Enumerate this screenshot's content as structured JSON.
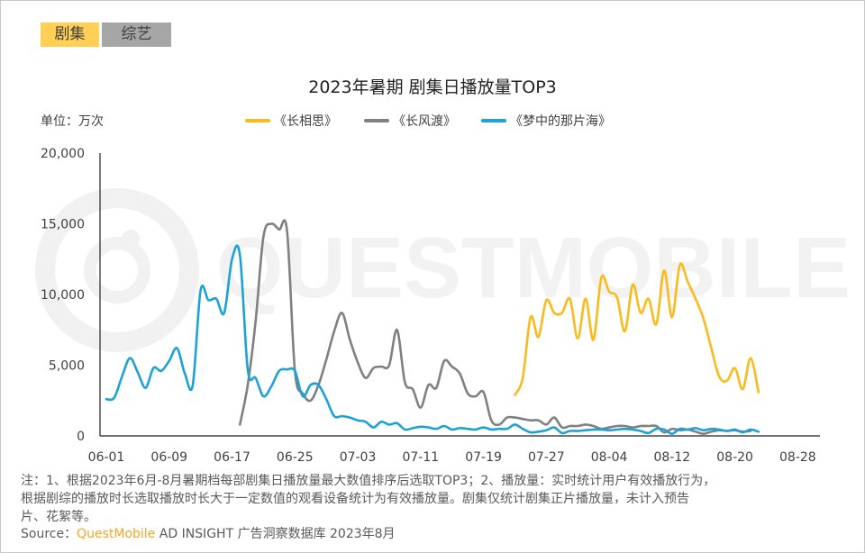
{
  "tabs": [
    {
      "label": "剧集",
      "active": true,
      "color": "#FFD055"
    },
    {
      "label": "综艺",
      "active": false,
      "color": "#A6A6A6"
    }
  ],
  "watermark": "QUESTMOBILE",
  "chart_data": {
    "type": "line",
    "title": "2023年暑期 剧集日播放量TOP3",
    "unit_label": "单位：万次",
    "ylim": [
      0,
      20000
    ],
    "y_ticks": [
      "0",
      "5,000",
      "10,000",
      "15,000",
      "20,000"
    ],
    "y_tick_values": [
      0,
      5000,
      10000,
      15000,
      20000
    ],
    "x_ticks": [
      "06-01",
      "06-09",
      "06-17",
      "06-25",
      "07-03",
      "07-11",
      "07-19",
      "07-27",
      "08-04",
      "08-12",
      "08-20",
      "08-28"
    ],
    "xlim": [
      "06-01",
      "08-28"
    ],
    "grid": false,
    "legend_position": "top",
    "series": [
      {
        "name": "《长相思》",
        "color": "#FBBA1B",
        "points": [
          [
            "07-23",
            2900
          ],
          [
            "07-24",
            4100
          ],
          [
            "07-25",
            8400
          ],
          [
            "07-26",
            7000
          ],
          [
            "07-27",
            9600
          ],
          [
            "07-28",
            8700
          ],
          [
            "07-29",
            8700
          ],
          [
            "07-30",
            9700
          ],
          [
            "07-31",
            6900
          ],
          [
            "08-01",
            9700
          ],
          [
            "08-02",
            6800
          ],
          [
            "08-03",
            11200
          ],
          [
            "08-04",
            10200
          ],
          [
            "08-05",
            9800
          ],
          [
            "08-06",
            7400
          ],
          [
            "08-07",
            10700
          ],
          [
            "08-08",
            8700
          ],
          [
            "08-09",
            9700
          ],
          [
            "08-10",
            7900
          ],
          [
            "08-11",
            11700
          ],
          [
            "08-12",
            8400
          ],
          [
            "08-13",
            12100
          ],
          [
            "08-14",
            10900
          ],
          [
            "08-15",
            9700
          ],
          [
            "08-16",
            8300
          ],
          [
            "08-17",
            6200
          ],
          [
            "08-18",
            4200
          ],
          [
            "08-19",
            3900
          ],
          [
            "08-20",
            4800
          ],
          [
            "08-21",
            3300
          ],
          [
            "08-22",
            5500
          ],
          [
            "08-23",
            3100
          ]
        ]
      },
      {
        "name": "《长风渡》",
        "color": "#808080",
        "points": [
          [
            "06-18",
            800
          ],
          [
            "06-19",
            3600
          ],
          [
            "06-20",
            8100
          ],
          [
            "06-21",
            14100
          ],
          [
            "06-22",
            15000
          ],
          [
            "06-23",
            14600
          ],
          [
            "06-24",
            14500
          ],
          [
            "06-25",
            4600
          ],
          [
            "06-26",
            3000
          ],
          [
            "06-27",
            2500
          ],
          [
            "06-28",
            3600
          ],
          [
            "06-29",
            5400
          ],
          [
            "06-30",
            7400
          ],
          [
            "07-01",
            8700
          ],
          [
            "07-02",
            6800
          ],
          [
            "07-03",
            5200
          ],
          [
            "07-04",
            4100
          ],
          [
            "07-05",
            4800
          ],
          [
            "07-06",
            4900
          ],
          [
            "07-07",
            5000
          ],
          [
            "07-08",
            7500
          ],
          [
            "07-09",
            3800
          ],
          [
            "07-10",
            3300
          ],
          [
            "07-11",
            2000
          ],
          [
            "07-12",
            3600
          ],
          [
            "07-13",
            3400
          ],
          [
            "07-14",
            5300
          ],
          [
            "07-15",
            4900
          ],
          [
            "07-16",
            4400
          ],
          [
            "07-17",
            3000
          ],
          [
            "07-18",
            2800
          ],
          [
            "07-19",
            3100
          ],
          [
            "07-20",
            1100
          ],
          [
            "07-21",
            800
          ],
          [
            "07-22",
            1300
          ],
          [
            "07-23",
            1300
          ],
          [
            "07-24",
            1200
          ],
          [
            "07-25",
            1100
          ],
          [
            "07-26",
            1100
          ],
          [
            "07-27",
            800
          ],
          [
            "07-28",
            1300
          ],
          [
            "07-29",
            600
          ],
          [
            "07-30",
            700
          ],
          [
            "07-31",
            700
          ],
          [
            "08-01",
            800
          ],
          [
            "08-02",
            700
          ],
          [
            "08-03",
            500
          ],
          [
            "08-04",
            600
          ],
          [
            "08-05",
            700
          ],
          [
            "08-06",
            700
          ],
          [
            "08-07",
            600
          ],
          [
            "08-08",
            700
          ],
          [
            "08-09",
            700
          ],
          [
            "08-10",
            700
          ],
          [
            "08-11",
            250
          ],
          [
            "08-12",
            500
          ],
          [
            "08-13",
            400
          ],
          [
            "08-14",
            450
          ],
          [
            "08-15",
            300
          ],
          [
            "08-16",
            150
          ],
          [
            "08-17",
            300
          ],
          [
            "08-18",
            400
          ],
          [
            "08-19",
            350
          ],
          [
            "08-20",
            400
          ],
          [
            "08-21",
            300
          ],
          [
            "08-22",
            350
          ]
        ]
      },
      {
        "name": "《梦中的那片海》",
        "color": "#1CA1D9",
        "points": [
          [
            "06-01",
            2600
          ],
          [
            "06-02",
            2700
          ],
          [
            "06-03",
            4200
          ],
          [
            "06-04",
            5500
          ],
          [
            "06-05",
            4500
          ],
          [
            "06-06",
            3400
          ],
          [
            "06-07",
            4800
          ],
          [
            "06-08",
            4600
          ],
          [
            "06-09",
            5300
          ],
          [
            "06-10",
            6200
          ],
          [
            "06-11",
            4400
          ],
          [
            "06-12",
            3600
          ],
          [
            "06-13",
            10300
          ],
          [
            "06-14",
            9600
          ],
          [
            "06-15",
            9700
          ],
          [
            "06-16",
            8700
          ],
          [
            "06-17",
            12500
          ],
          [
            "06-18",
            12800
          ],
          [
            "06-19",
            4700
          ],
          [
            "06-20",
            4100
          ],
          [
            "06-21",
            2800
          ],
          [
            "06-22",
            3500
          ],
          [
            "06-23",
            4600
          ],
          [
            "06-24",
            4700
          ],
          [
            "06-25",
            4600
          ],
          [
            "06-26",
            2800
          ],
          [
            "06-27",
            3600
          ],
          [
            "06-28",
            3600
          ],
          [
            "06-29",
            2600
          ],
          [
            "06-30",
            1400
          ],
          [
            "07-01",
            1400
          ],
          [
            "07-02",
            1300
          ],
          [
            "07-03",
            1100
          ],
          [
            "07-04",
            1000
          ],
          [
            "07-05",
            600
          ],
          [
            "07-06",
            1000
          ],
          [
            "07-07",
            800
          ],
          [
            "07-08",
            900
          ],
          [
            "07-09",
            450
          ],
          [
            "07-10",
            550
          ],
          [
            "07-11",
            650
          ],
          [
            "07-12",
            600
          ],
          [
            "07-13",
            500
          ],
          [
            "07-14",
            700
          ],
          [
            "07-15",
            450
          ],
          [
            "07-16",
            550
          ],
          [
            "07-17",
            500
          ],
          [
            "07-18",
            450
          ],
          [
            "07-19",
            600
          ],
          [
            "07-20",
            450
          ],
          [
            "07-21",
            500
          ],
          [
            "07-22",
            500
          ],
          [
            "07-23",
            800
          ],
          [
            "07-24",
            500
          ],
          [
            "07-25",
            250
          ],
          [
            "07-26",
            300
          ],
          [
            "07-27",
            400
          ],
          [
            "07-28",
            600
          ],
          [
            "07-29",
            200
          ],
          [
            "07-30",
            350
          ],
          [
            "07-31",
            350
          ],
          [
            "08-01",
            400
          ],
          [
            "08-02",
            450
          ],
          [
            "08-03",
            450
          ],
          [
            "08-04",
            400
          ],
          [
            "08-05",
            450
          ],
          [
            "08-06",
            500
          ],
          [
            "08-07",
            450
          ],
          [
            "08-08",
            350
          ],
          [
            "08-09",
            200
          ],
          [
            "08-10",
            500
          ],
          [
            "08-11",
            450
          ],
          [
            "08-12",
            150
          ],
          [
            "08-13",
            500
          ],
          [
            "08-14",
            450
          ],
          [
            "08-15",
            550
          ],
          [
            "08-16",
            400
          ],
          [
            "08-17",
            500
          ],
          [
            "08-18",
            450
          ],
          [
            "08-19",
            350
          ],
          [
            "08-20",
            450
          ],
          [
            "08-21",
            250
          ],
          [
            "08-22",
            450
          ],
          [
            "08-23",
            300
          ]
        ]
      }
    ]
  },
  "notes": {
    "line1": "注：1、根据2023年6月-8月暑期档每部剧集日播放量最大数值排序后选取TOP3；2、播放量：实时统计用户有效播放行为，",
    "line2": "根据剧综的播放时长选取播放时长大于一定数值的观看设备统计为有效播放量。剧集仅统计剧集正片播放量，未计入预告",
    "line3": "片、花絮等。",
    "source_prefix": "Source：",
    "source_brand": "QuestMobile",
    "source_rest": " AD INSIGHT 广告洞察数据库 2023年8月"
  }
}
